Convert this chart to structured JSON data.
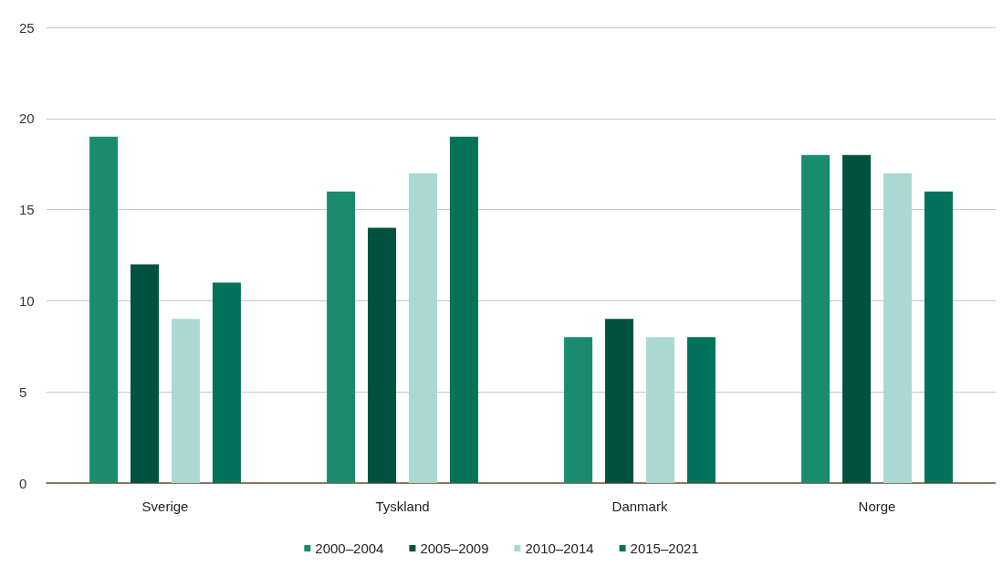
{
  "chart_data": {
    "type": "bar",
    "categories": [
      "Sverige",
      "Tyskland",
      "Danmark",
      "Norge"
    ],
    "series": [
      {
        "name": "2000–2004",
        "color": "#1a8c6e",
        "values": [
          19,
          16,
          8,
          18
        ]
      },
      {
        "name": "2005–2009",
        "color": "#00523f",
        "values": [
          12,
          14,
          9,
          18
        ]
      },
      {
        "name": "2010–2014",
        "color": "#acd8d2",
        "values": [
          9,
          17,
          8,
          17
        ]
      },
      {
        "name": "2015–2021",
        "color": "#00735a",
        "values": [
          11,
          19,
          8,
          16
        ]
      }
    ],
    "ylim": [
      0,
      25
    ],
    "yticks": [
      0,
      5,
      10,
      15,
      20,
      25
    ],
    "grid": "y",
    "legend": "bottom"
  }
}
